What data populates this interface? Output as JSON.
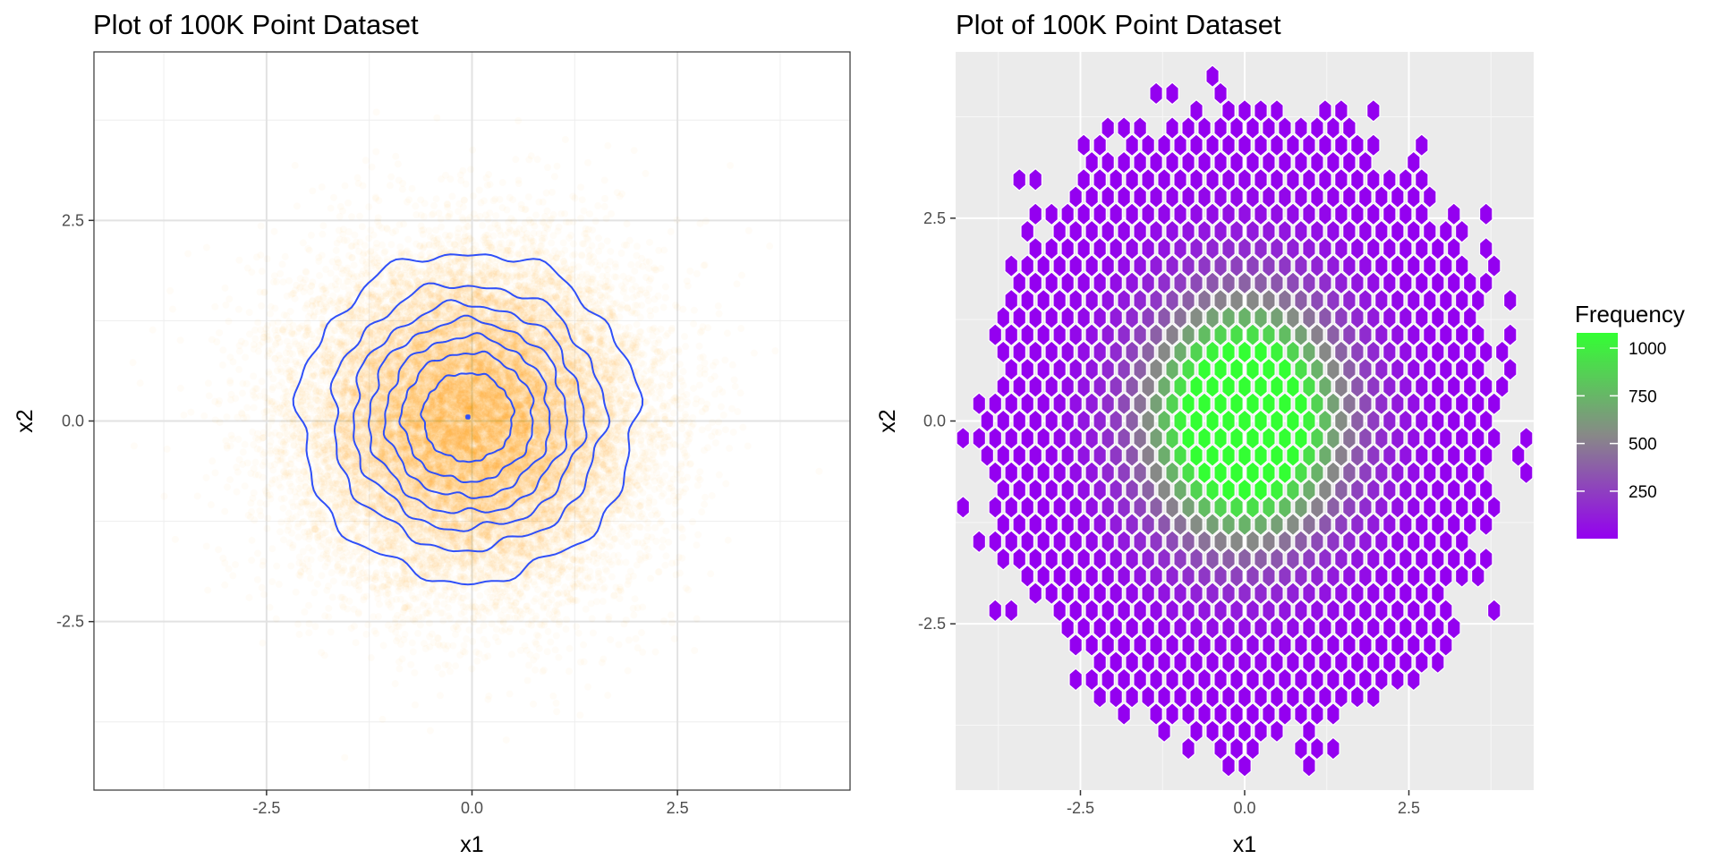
{
  "chart_data": [
    {
      "type": "scatter",
      "title": "Plot of 100K Point Dataset",
      "xlabel": "x1",
      "ylabel": "x2",
      "xlim": [
        -4.6,
        4.6
      ],
      "ylim": [
        -4.6,
        4.6
      ],
      "x_ticks": [
        -2.5,
        0.0,
        2.5
      ],
      "y_ticks": [
        -2.5,
        0.0,
        2.5
      ],
      "x_tick_labels": [
        "-2.5",
        "0.0",
        "2.5"
      ],
      "y_tick_labels": [
        "-2.5",
        "0.0",
        "2.5"
      ],
      "grid": true,
      "point_color": "#FFA500",
      "n_points": 100000,
      "contours": {
        "color": "#3050F8",
        "center": [
          -0.05,
          0.05
        ],
        "radii": [
          2.05,
          1.65,
          1.4,
          1.2,
          1.0,
          0.8,
          0.55,
          0.02
        ]
      }
    },
    {
      "type": "heatmap",
      "subtype": "hexbin",
      "title": "Plot of 100K Point Dataset",
      "xlabel": "x1",
      "ylabel": "x2",
      "xlim": [
        -4.4,
        4.4
      ],
      "ylim": [
        -4.55,
        4.55
      ],
      "x_ticks": [
        -2.5,
        0.0,
        2.5
      ],
      "y_ticks": [
        -2.5,
        0.0,
        2.5
      ],
      "x_tick_labels": [
        "-2.5",
        "0.0",
        "2.5"
      ],
      "y_tick_labels": [
        "-2.5",
        "0.0",
        "2.5"
      ],
      "grid": true,
      "legend": {
        "title": "Frequency",
        "position": "right",
        "breaks": [
          250,
          500,
          750,
          1000
        ],
        "break_labels": [
          "250",
          "500",
          "750",
          "1000"
        ],
        "range": [
          1,
          1080
        ],
        "low_color": "#9400F0",
        "mid_color": "#888888",
        "high_color": "#33FF33"
      },
      "hexbin": {
        "total": 100000,
        "binwidth_x": 0.245,
        "binwidth_y": 0.425,
        "peak": 1075
      }
    }
  ]
}
